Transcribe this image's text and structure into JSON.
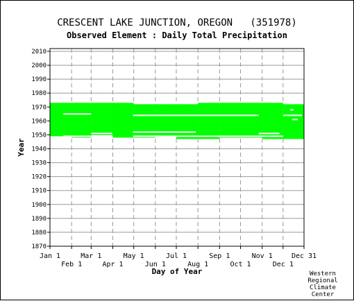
{
  "title": "CRESCENT LAKE JUNCTION, OREGON   (351978)",
  "subtitle": "Observed Element : Daily Total Precipitation",
  "credit": [
    "Western",
    "Regional",
    "Climate",
    "Center"
  ],
  "colors": {
    "data": "#00ff00",
    "grid": "#999999",
    "axis": "#000000"
  },
  "chart_data": {
    "type": "area",
    "title": "CRESCENT LAKE JUNCTION, OREGON   (351978)",
    "subtitle": "Observed Element : Daily Total Precipitation",
    "xlabel": "Day of Year",
    "ylabel": "Year",
    "xlim": [
      1,
      365
    ],
    "ylim": [
      1870,
      2012
    ],
    "grid": true,
    "x_ticks_upper": [
      {
        "label": "Jan 1",
        "day": 1
      },
      {
        "label": "Mar 1",
        "day": 60
      },
      {
        "label": "May 1",
        "day": 121
      },
      {
        "label": "Jul 1",
        "day": 182
      },
      {
        "label": "Sep 1",
        "day": 244
      },
      {
        "label": "Nov 1",
        "day": 305
      },
      {
        "label": "Dec 31",
        "day": 365
      }
    ],
    "x_ticks_lower": [
      {
        "label": "Feb 1",
        "day": 32
      },
      {
        "label": "Apr 1",
        "day": 91
      },
      {
        "label": "Jun 1",
        "day": 152
      },
      {
        "label": "Aug 1",
        "day": 213
      },
      {
        "label": "Oct 1",
        "day": 274
      },
      {
        "label": "Dec 1",
        "day": 335
      }
    ],
    "y_ticks": [
      1870,
      1880,
      1890,
      1900,
      1910,
      1920,
      1930,
      1940,
      1950,
      1960,
      1970,
      1980,
      1990,
      2000,
      2010
    ],
    "series": [
      {
        "color": "#00ff00",
        "segments": [
          {
            "x0": 1,
            "x1": 32,
            "y0": 1949,
            "y1": 1973
          },
          {
            "x0": 32,
            "x1": 60,
            "y0": 1948,
            "y1": 1973
          },
          {
            "x0": 60,
            "x1": 91,
            "y0": 1950,
            "y1": 1973
          },
          {
            "x0": 91,
            "x1": 121,
            "y0": 1948,
            "y1": 1973
          },
          {
            "x0": 121,
            "x1": 152,
            "y0": 1948,
            "y1": 1972
          },
          {
            "x0": 152,
            "x1": 182,
            "y0": 1949,
            "y1": 1972
          },
          {
            "x0": 182,
            "x1": 213,
            "y0": 1947,
            "y1": 1972
          },
          {
            "x0": 213,
            "x1": 244,
            "y0": 1947,
            "y1": 1973
          },
          {
            "x0": 244,
            "x1": 274,
            "y0": 1948,
            "y1": 1973
          },
          {
            "x0": 274,
            "x1": 305,
            "y0": 1948,
            "y1": 1973
          },
          {
            "x0": 305,
            "x1": 335,
            "y0": 1947,
            "y1": 1973
          },
          {
            "x0": 335,
            "x1": 365,
            "y0": 1947,
            "y1": 1972
          }
        ],
        "gaps": [
          {
            "x0": 20,
            "x1": 60,
            "year": 1965
          },
          {
            "x0": 20,
            "x1": 60,
            "year": 1949
          },
          {
            "x0": 60,
            "x1": 90,
            "year": 1951
          },
          {
            "x0": 120,
            "x1": 200,
            "year": 1964
          },
          {
            "x0": 120,
            "x1": 210,
            "year": 1952
          },
          {
            "x0": 120,
            "x1": 255,
            "year": 1949
          },
          {
            "x0": 200,
            "x1": 300,
            "year": 1964
          },
          {
            "x0": 255,
            "x1": 335,
            "year": 1949
          },
          {
            "x0": 300,
            "x1": 330,
            "year": 1951
          },
          {
            "x0": 335,
            "x1": 362,
            "year": 1964
          },
          {
            "x0": 348,
            "x1": 356,
            "year": 1961
          },
          {
            "x0": 345,
            "x1": 350,
            "year": 1968
          }
        ]
      }
    ]
  }
}
